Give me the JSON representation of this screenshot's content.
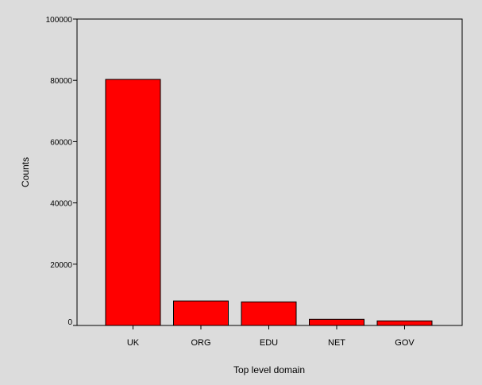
{
  "chart_data": {
    "type": "bar",
    "title": "",
    "xlabel": "Top level domain",
    "ylabel": "Counts",
    "categories": [
      "UK",
      "ORG",
      "EDU",
      "NET",
      "GOV"
    ],
    "values": [
      80300,
      8000,
      7700,
      2000,
      1500
    ],
    "ylim": [
      0,
      100000
    ],
    "yticks": [
      0,
      20000,
      40000,
      60000,
      80000,
      100000
    ],
    "grid": false,
    "legend": "none",
    "colors": {
      "bar_fill": "#ff0000",
      "bar_stroke": "#000000",
      "background": "#dcdcdc"
    }
  }
}
